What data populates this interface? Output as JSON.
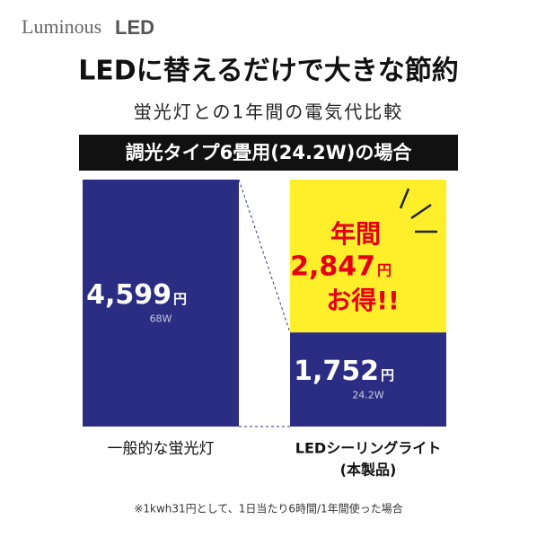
{
  "logo": {
    "brand": "Luminous",
    "suffix": "LED"
  },
  "title": "LEDに替えるだけで大きな節約",
  "subtitle": "蛍光灯との1年間の電気代比較",
  "banner": "調光タイプ6畳用(24.2W)の場合",
  "bars": [
    {
      "value": 4599,
      "value_label": "4,599",
      "unit": "円",
      "watt": "68W",
      "label": "一般的な蛍光灯",
      "color": "#2b2d83"
    },
    {
      "value": 1752,
      "value_label": "1,752",
      "unit": "円",
      "watt": "24.2W",
      "label": "LEDシーリングライト",
      "sublabel": "(本製品)",
      "color": "#2b2d83"
    }
  ],
  "savings": {
    "line1": "年間",
    "amount": "2,847",
    "unit": "円",
    "line3": "お得!!",
    "color": "#ffef2a",
    "text_color": "#e60012"
  },
  "footnote": "※1kwh31円として、1日当たり6時間/1年間使った場合"
}
